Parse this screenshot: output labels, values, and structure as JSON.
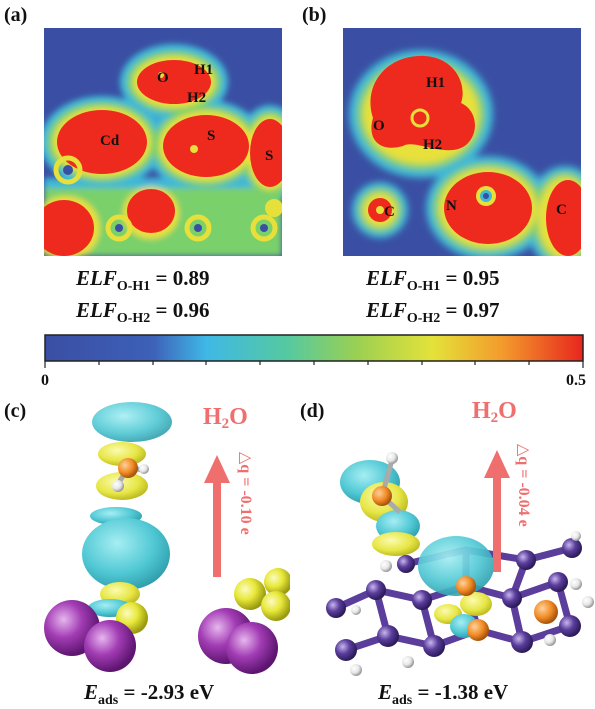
{
  "panels": {
    "a": {
      "label": "(a)",
      "atoms": [
        "O",
        "H1",
        "H2",
        "Cd",
        "S",
        "S"
      ],
      "elf_label": "ELF",
      "elf_oh1_sub": "O-H1",
      "elf_oh1_value": "= 0.89",
      "elf_oh2_sub": "O-H2",
      "elf_oh2_value": "= 0.96"
    },
    "b": {
      "label": "(b)",
      "atoms": [
        "H1",
        "O",
        "H2",
        "C",
        "N",
        "C"
      ],
      "elf_label": "ELF",
      "elf_oh1_sub": "O-H1",
      "elf_oh1_value": "= 0.95",
      "elf_oh2_sub": "O-H2",
      "elf_oh2_value": "= 0.97"
    },
    "c": {
      "label": "(c)",
      "molecule": "H",
      "molecule_sub": "2",
      "molecule_tail": "O",
      "charge": "△q = -0.10 e",
      "eads_symbol": "E",
      "eads_sub": "ads",
      "eads_value": "= -2.93 eV"
    },
    "d": {
      "label": "(d)",
      "molecule": "H",
      "molecule_sub": "2",
      "molecule_tail": "O",
      "charge": "△q = -0.04 e",
      "eads_symbol": "E",
      "eads_sub": "ads",
      "eads_value": "= -1.38 eV"
    }
  },
  "colorbar": {
    "min_label": "0",
    "max_label": "0.5",
    "min": 0,
    "max": 0.5
  },
  "colors": {
    "elf_low": "#3a4fa3",
    "elf_high": "#ee2a1f",
    "isosurface_accumulation": "#e7e645",
    "isosurface_depletion": "#50c8d4",
    "arrow": "#ef6f6f",
    "cd_atom": "#a23cb4",
    "s_atom": "#e8e83a",
    "c_atom": "#5b3e9c",
    "n_atom": "#f08a25",
    "o_atom": "#f08a25",
    "h_atom": "#e6e6e6"
  }
}
